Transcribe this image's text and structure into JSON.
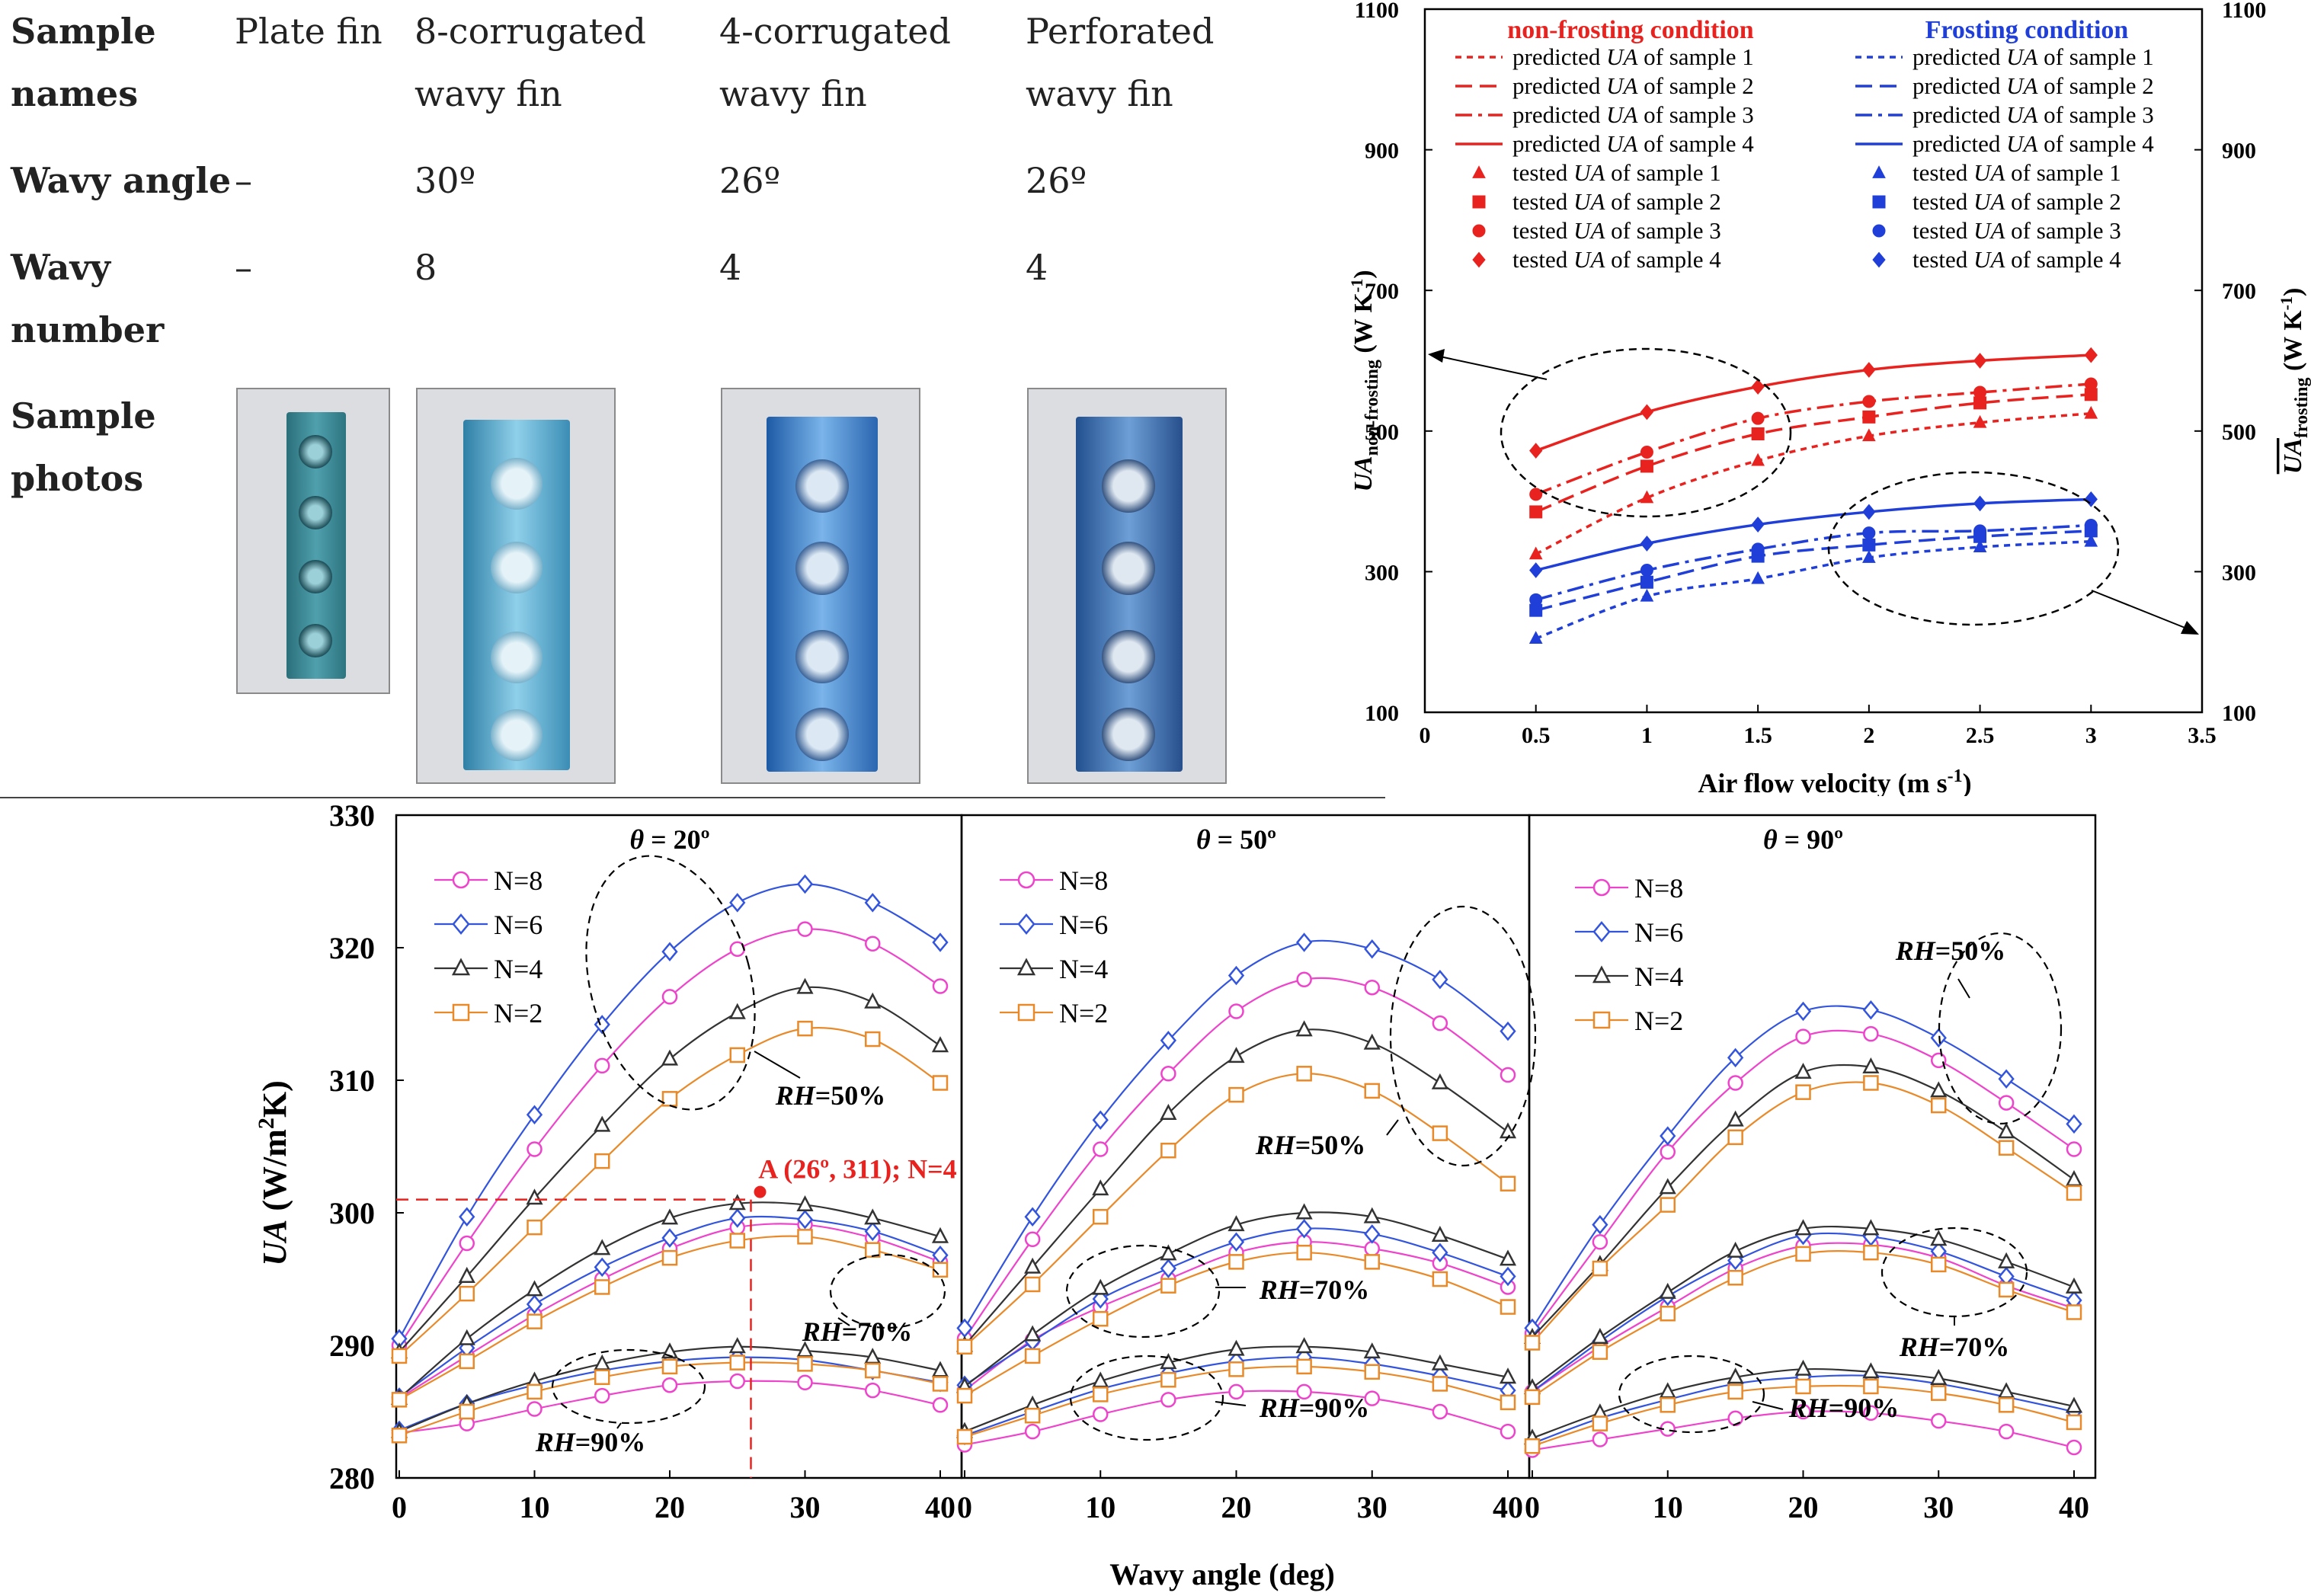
{
  "table": {
    "headers": [
      "Sample names",
      "Plate fin",
      "8-corrugated wavy fin",
      "4-corrugated wavy fin",
      "Perforated wavy fin"
    ],
    "rows": [
      {
        "label": "Wavy angle",
        "values": [
          "–",
          "30º",
          "26º",
          "26º"
        ]
      },
      {
        "label": "Wavy number",
        "values": [
          "–",
          "8",
          "4",
          "4"
        ]
      }
    ],
    "photos_label": "Sample photos"
  },
  "chart_data": [
    {
      "type": "line",
      "xlabel": "Air flow velocity (m s-1)",
      "ylabel_left": "UAnon-frosting (W K-1)",
      "ylabel_right": "UAfrosting (W K-1)",
      "xlim": [
        0,
        3.5
      ],
      "ylim": [
        100,
        1100
      ],
      "xticks": [
        "0",
        "0.5",
        "1",
        "1.5",
        "2",
        "2.5",
        "3",
        "3.5"
      ],
      "yticks": [
        "100",
        "300",
        "500",
        "700",
        "900",
        "1100"
      ],
      "legend_groups": [
        {
          "title": "non-frosting condition",
          "color": "#e8231f",
          "entries": [
            "predicted UA of sample 1",
            "predicted UA of sample 2",
            "predicted UA of sample 3",
            "predicted UA of sample 4",
            "tested UA of sample 1",
            "tested UA of sample 2",
            "tested UA of sample 3",
            "tested UA of sample 4"
          ]
        },
        {
          "title": "Frosting condition",
          "color": "#1f3fd8",
          "entries": [
            "predicted UA of sample 1",
            "predicted UA of sample 2",
            "predicted UA of sample 3",
            "predicted UA of sample 4",
            "tested UA of sample 1",
            "tested UA of sample 2",
            "tested UA of sample 3",
            "tested UA of sample 4"
          ]
        }
      ],
      "x": [
        0.5,
        1,
        1.5,
        2,
        2.5,
        3
      ],
      "series": [
        {
          "condition": "non-frosting",
          "sample": 1,
          "color": "#e8231f",
          "dash": "dot",
          "marker": "triangle",
          "values": [
            325,
            405,
            458,
            493,
            512,
            525
          ]
        },
        {
          "condition": "non-frosting",
          "sample": 2,
          "color": "#e8231f",
          "dash": "dash",
          "marker": "square",
          "values": [
            385,
            450,
            496,
            520,
            540,
            552
          ]
        },
        {
          "condition": "non-frosting",
          "sample": 3,
          "color": "#e8231f",
          "dash": "dashdot",
          "marker": "circle",
          "values": [
            410,
            470,
            518,
            542,
            555,
            567
          ]
        },
        {
          "condition": "non-frosting",
          "sample": 4,
          "color": "#e8231f",
          "dash": "solid",
          "marker": "diamond",
          "values": [
            472,
            527,
            563,
            587,
            600,
            608
          ]
        },
        {
          "condition": "frosting",
          "sample": 1,
          "color": "#1f3fd8",
          "dash": "dot",
          "marker": "triangle",
          "values": [
            205,
            265,
            290,
            320,
            335,
            343
          ]
        },
        {
          "condition": "frosting",
          "sample": 2,
          "color": "#1f3fd8",
          "dash": "dash",
          "marker": "square",
          "values": [
            245,
            285,
            322,
            338,
            350,
            358
          ]
        },
        {
          "condition": "frosting",
          "sample": 3,
          "color": "#1f3fd8",
          "dash": "dashdot",
          "marker": "circle",
          "values": [
            260,
            302,
            332,
            355,
            358,
            366
          ]
        },
        {
          "condition": "frosting",
          "sample": 4,
          "color": "#1f3fd8",
          "dash": "solid",
          "marker": "diamond",
          "values": [
            302,
            340,
            367,
            385,
            397,
            403
          ]
        }
      ]
    },
    {
      "type": "line",
      "ylabel": "UA (W/m2K)",
      "xlabel": "Wavy angle (deg)",
      "ylim": [
        280,
        330
      ],
      "yticks": [
        "280",
        "290",
        "300",
        "310",
        "320",
        "330"
      ],
      "xticks": [
        "0",
        "10",
        "20",
        "30",
        "40"
      ],
      "x": [
        0,
        5,
        10,
        15,
        20,
        25,
        30,
        35,
        40
      ],
      "colors": {
        "N=8": "#ee44cc",
        "N=6": "#3355dd",
        "N=4": "#333333",
        "N=2": "#e88a2a"
      },
      "legend": [
        "N=8",
        "N=6",
        "N=4",
        "N=2"
      ],
      "panels": [
        {
          "title": "θ = 20º",
          "rh_labels": [
            "RH=50%",
            "RH=70%",
            "RH=90%"
          ],
          "annotation": {
            "text": "A (26º, 311); N=4",
            "x": 26,
            "y": 301
          },
          "series": [
            {
              "name": "N=8",
              "rh": "50%",
              "values": [
                290,
                297.7,
                304.8,
                311.1,
                316.3,
                319.9,
                321.4,
                320.3,
                317.1
              ]
            },
            {
              "name": "N=6",
              "rh": "50%",
              "values": [
                290.5,
                299.7,
                307.4,
                314.2,
                319.7,
                323.4,
                324.8,
                323.4,
                320.4
              ]
            },
            {
              "name": "N=4",
              "rh": "50%",
              "values": [
                289.5,
                295.2,
                301.1,
                306.6,
                311.6,
                315.1,
                317,
                315.9,
                312.6
              ]
            },
            {
              "name": "N=2",
              "rh": "50%",
              "values": [
                289.2,
                293.9,
                298.9,
                303.9,
                308.6,
                311.9,
                313.9,
                313.1,
                309.8
              ]
            },
            {
              "name": "N=8",
              "rh": "70%",
              "values": [
                286,
                289.2,
                292.3,
                295,
                297.3,
                298.9,
                299.1,
                298.1,
                296.3
              ]
            },
            {
              "name": "N=6",
              "rh": "70%",
              "values": [
                286.1,
                289.8,
                293.1,
                295.9,
                298.1,
                299.6,
                299.5,
                298.6,
                296.8
              ]
            },
            {
              "name": "N=4",
              "rh": "70%",
              "values": [
                286,
                290.5,
                294.2,
                297.3,
                299.6,
                300.7,
                300.6,
                299.6,
                298.2
              ]
            },
            {
              "name": "N=2",
              "rh": "70%",
              "values": [
                285.9,
                288.8,
                291.8,
                294.4,
                296.6,
                297.9,
                298.2,
                297.2,
                295.7
              ]
            },
            {
              "name": "N=8",
              "rh": "90%",
              "values": [
                283.4,
                284.1,
                285.2,
                286.2,
                287,
                287.3,
                287.2,
                286.6,
                285.5
              ]
            },
            {
              "name": "N=6",
              "rh": "90%",
              "values": [
                283.6,
                285.6,
                287,
                288.1,
                288.8,
                289.1,
                288.9,
                288.1,
                287.2
              ]
            },
            {
              "name": "N=4",
              "rh": "90%",
              "values": [
                283.5,
                285.6,
                287.3,
                288.6,
                289.5,
                289.9,
                289.6,
                289.1,
                288.1
              ]
            },
            {
              "name": "N=2",
              "rh": "90%",
              "values": [
                283.2,
                285,
                286.5,
                287.6,
                288.4,
                288.7,
                288.6,
                288.1,
                287.1
              ]
            }
          ]
        },
        {
          "title": "θ = 50º",
          "rh_labels": [
            "RH=50%",
            "RH=70%",
            "RH=90%"
          ],
          "series": [
            {
              "name": "N=8",
              "rh": "50%",
              "values": [
                290.5,
                298,
                304.8,
                310.5,
                315.2,
                317.6,
                317,
                314.3,
                310.4
              ]
            },
            {
              "name": "N=6",
              "rh": "50%",
              "values": [
                291.3,
                299.7,
                307,
                313,
                317.9,
                320.4,
                319.9,
                317.6,
                313.7
              ]
            },
            {
              "name": "N=4",
              "rh": "50%",
              "values": [
                290,
                295.9,
                301.8,
                307.5,
                311.8,
                313.8,
                312.8,
                309.8,
                306.1
              ]
            },
            {
              "name": "N=2",
              "rh": "50%",
              "values": [
                289.9,
                294.6,
                299.7,
                304.7,
                308.9,
                310.5,
                309.2,
                306,
                302.2
              ]
            },
            {
              "name": "N=8",
              "rh": "70%",
              "values": [
                286.6,
                290.4,
                292.9,
                295,
                297,
                297.8,
                297.3,
                296.2,
                294.4
              ]
            },
            {
              "name": "N=6",
              "rh": "70%",
              "values": [
                287,
                290.3,
                293.5,
                295.8,
                297.8,
                298.8,
                298.4,
                297,
                295.2
              ]
            },
            {
              "name": "N=4",
              "rh": "70%",
              "values": [
                286.9,
                290.8,
                294.3,
                296.9,
                299.1,
                300,
                299.7,
                298.3,
                296.5
              ]
            },
            {
              "name": "N=2",
              "rh": "70%",
              "values": [
                286.2,
                289.2,
                292,
                294.5,
                296.3,
                297,
                296.3,
                295,
                292.9
              ]
            },
            {
              "name": "N=8",
              "rh": "90%",
              "values": [
                282.5,
                283.5,
                284.8,
                285.9,
                286.5,
                286.5,
                286,
                285,
                283.5
              ]
            },
            {
              "name": "N=6",
              "rh": "90%",
              "values": [
                283.2,
                285,
                286.7,
                287.9,
                288.8,
                289.1,
                288.6,
                287.7,
                286.6
              ]
            },
            {
              "name": "N=4",
              "rh": "90%",
              "values": [
                283.5,
                285.5,
                287.3,
                288.7,
                289.7,
                289.9,
                289.5,
                288.6,
                287.6
              ]
            },
            {
              "name": "N=2",
              "rh": "90%",
              "values": [
                283.1,
                284.7,
                286.3,
                287.4,
                288.2,
                288.4,
                288,
                287.1,
                285.7
              ]
            }
          ]
        },
        {
          "title": "θ = 90º",
          "rh_labels": [
            "RH=50%",
            "RH=70%",
            "RH=90%"
          ],
          "series": [
            {
              "name": "N=8",
              "rh": "50%",
              "values": [
                290.9,
                297.8,
                304.6,
                309.8,
                313.3,
                313.5,
                311.5,
                308.3,
                304.8
              ]
            },
            {
              "name": "N=6",
              "rh": "50%",
              "values": [
                291.3,
                299.1,
                305.8,
                311.7,
                315.2,
                315.3,
                313.2,
                310.1,
                306.7
              ]
            },
            {
              "name": "N=4",
              "rh": "50%",
              "values": [
                290.6,
                296.1,
                301.9,
                307,
                310.6,
                311,
                309.2,
                306.1,
                302.5
              ]
            },
            {
              "name": "N=2",
              "rh": "50%",
              "values": [
                290.2,
                295.8,
                300.6,
                305.7,
                309.1,
                309.8,
                308.1,
                304.9,
                301.5
              ]
            },
            {
              "name": "N=8",
              "rh": "70%",
              "values": [
                286.5,
                289.9,
                292.9,
                295.8,
                297.5,
                297.6,
                296.6,
                294.5,
                292.8
              ]
            },
            {
              "name": "N=6",
              "rh": "70%",
              "values": [
                286.5,
                290.3,
                293.7,
                296.4,
                298.3,
                298.2,
                297.1,
                295.2,
                293.4
              ]
            },
            {
              "name": "N=4",
              "rh": "70%",
              "values": [
                286.8,
                290.6,
                294,
                297.1,
                298.8,
                298.8,
                298,
                296.3,
                294.4
              ]
            },
            {
              "name": "N=2",
              "rh": "70%",
              "values": [
                286.1,
                289.5,
                292.4,
                295.1,
                296.9,
                297,
                296.1,
                294.2,
                292.5
              ]
            },
            {
              "name": "N=8",
              "rh": "90%",
              "values": [
                282.1,
                282.9,
                283.7,
                284.5,
                285,
                284.9,
                284.3,
                283.5,
                282.3
              ]
            },
            {
              "name": "N=6",
              "rh": "90%",
              "values": [
                282.6,
                284.5,
                285.9,
                287.1,
                287.6,
                287.7,
                287.1,
                286.1,
                285
              ]
            },
            {
              "name": "N=4",
              "rh": "90%",
              "values": [
                283,
                284.9,
                286.5,
                287.6,
                288.2,
                288,
                287.5,
                286.5,
                285.4
              ]
            },
            {
              "name": "N=2",
              "rh": "90%",
              "values": [
                282.4,
                284.1,
                285.5,
                286.5,
                286.9,
                286.9,
                286.4,
                285.5,
                284.2
              ]
            }
          ]
        }
      ]
    }
  ]
}
